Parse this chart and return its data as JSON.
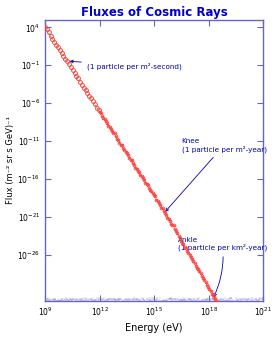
{
  "title": "Fluxes of Cosmic Rays",
  "title_color": "#0000CC",
  "xlabel": "Energy (eV)",
  "ylabel": "Flux (m⁻² sr s GeV)⁻¹",
  "xlim_log": [
    9,
    21
  ],
  "ylim_log": [
    -32,
    5
  ],
  "background_color": "#FFFFFF",
  "spine_color": "#6666BB",
  "data_color_main": "#FF4444",
  "data_color_fit": "#44CC44",
  "annotation_color": "#0000AA",
  "knee_label": "Knee",
  "knee_sublabel": "(1 particle per m²-year)",
  "ankle_label": "Ankle",
  "ankle_sublabel": "(1 particle per km²-year)",
  "particle_per_m2s_label": "(1 particle per m²-second)",
  "xlim": [
    1000000000.0,
    1e+21
  ],
  "ylim": [
    1e-32,
    100000.0
  ]
}
